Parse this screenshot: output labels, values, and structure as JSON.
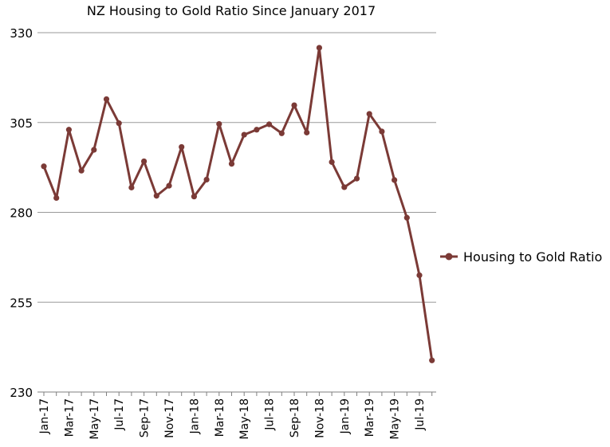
{
  "chart_data": {
    "type": "line",
    "title": "NZ Housing to Gold Ratio Since January 2017",
    "xlabel": "",
    "ylabel": "",
    "ylim": [
      230,
      330
    ],
    "yticks": [
      230,
      255,
      280,
      305,
      330
    ],
    "grid": true,
    "legend_position": "right",
    "x": [
      "Jan-17",
      "Feb-17",
      "Mar-17",
      "Apr-17",
      "May-17",
      "Jun-17",
      "Jul-17",
      "Aug-17",
      "Sep-17",
      "Oct-17",
      "Nov-17",
      "Dec-17",
      "Jan-18",
      "Feb-18",
      "Mar-18",
      "Apr-18",
      "May-18",
      "Jun-18",
      "Jul-18",
      "Aug-18",
      "Sep-18",
      "Oct-18",
      "Nov-18",
      "Dec-18",
      "Jan-19",
      "Feb-19",
      "Mar-19",
      "Apr-19",
      "May-19",
      "Jun-19",
      "Jul-19",
      "Aug-19"
    ],
    "x_tick_labels": [
      "Jan-17",
      "Mar-17",
      "May-17",
      "Jul-17",
      "Sep-17",
      "Nov-17",
      "Jan-18",
      "Mar-18",
      "May-18",
      "Jul-18",
      "Sep-18",
      "Nov-18",
      "Jan-19",
      "Mar-19",
      "May-19",
      "Jul-19"
    ],
    "series": [
      {
        "name": "Housing to Gold Ratio",
        "color": "#7b3a36",
        "values": [
          292.8,
          284.0,
          303.0,
          291.6,
          297.4,
          311.5,
          304.8,
          286.9,
          294.2,
          284.6,
          287.4,
          298.2,
          284.4,
          289.1,
          304.6,
          293.5,
          301.6,
          303.0,
          304.5,
          302.0,
          309.8,
          302.2,
          325.8,
          294.0,
          287.0,
          289.4,
          307.4,
          302.5,
          289.0,
          278.5,
          262.5,
          238.8
        ]
      }
    ]
  }
}
